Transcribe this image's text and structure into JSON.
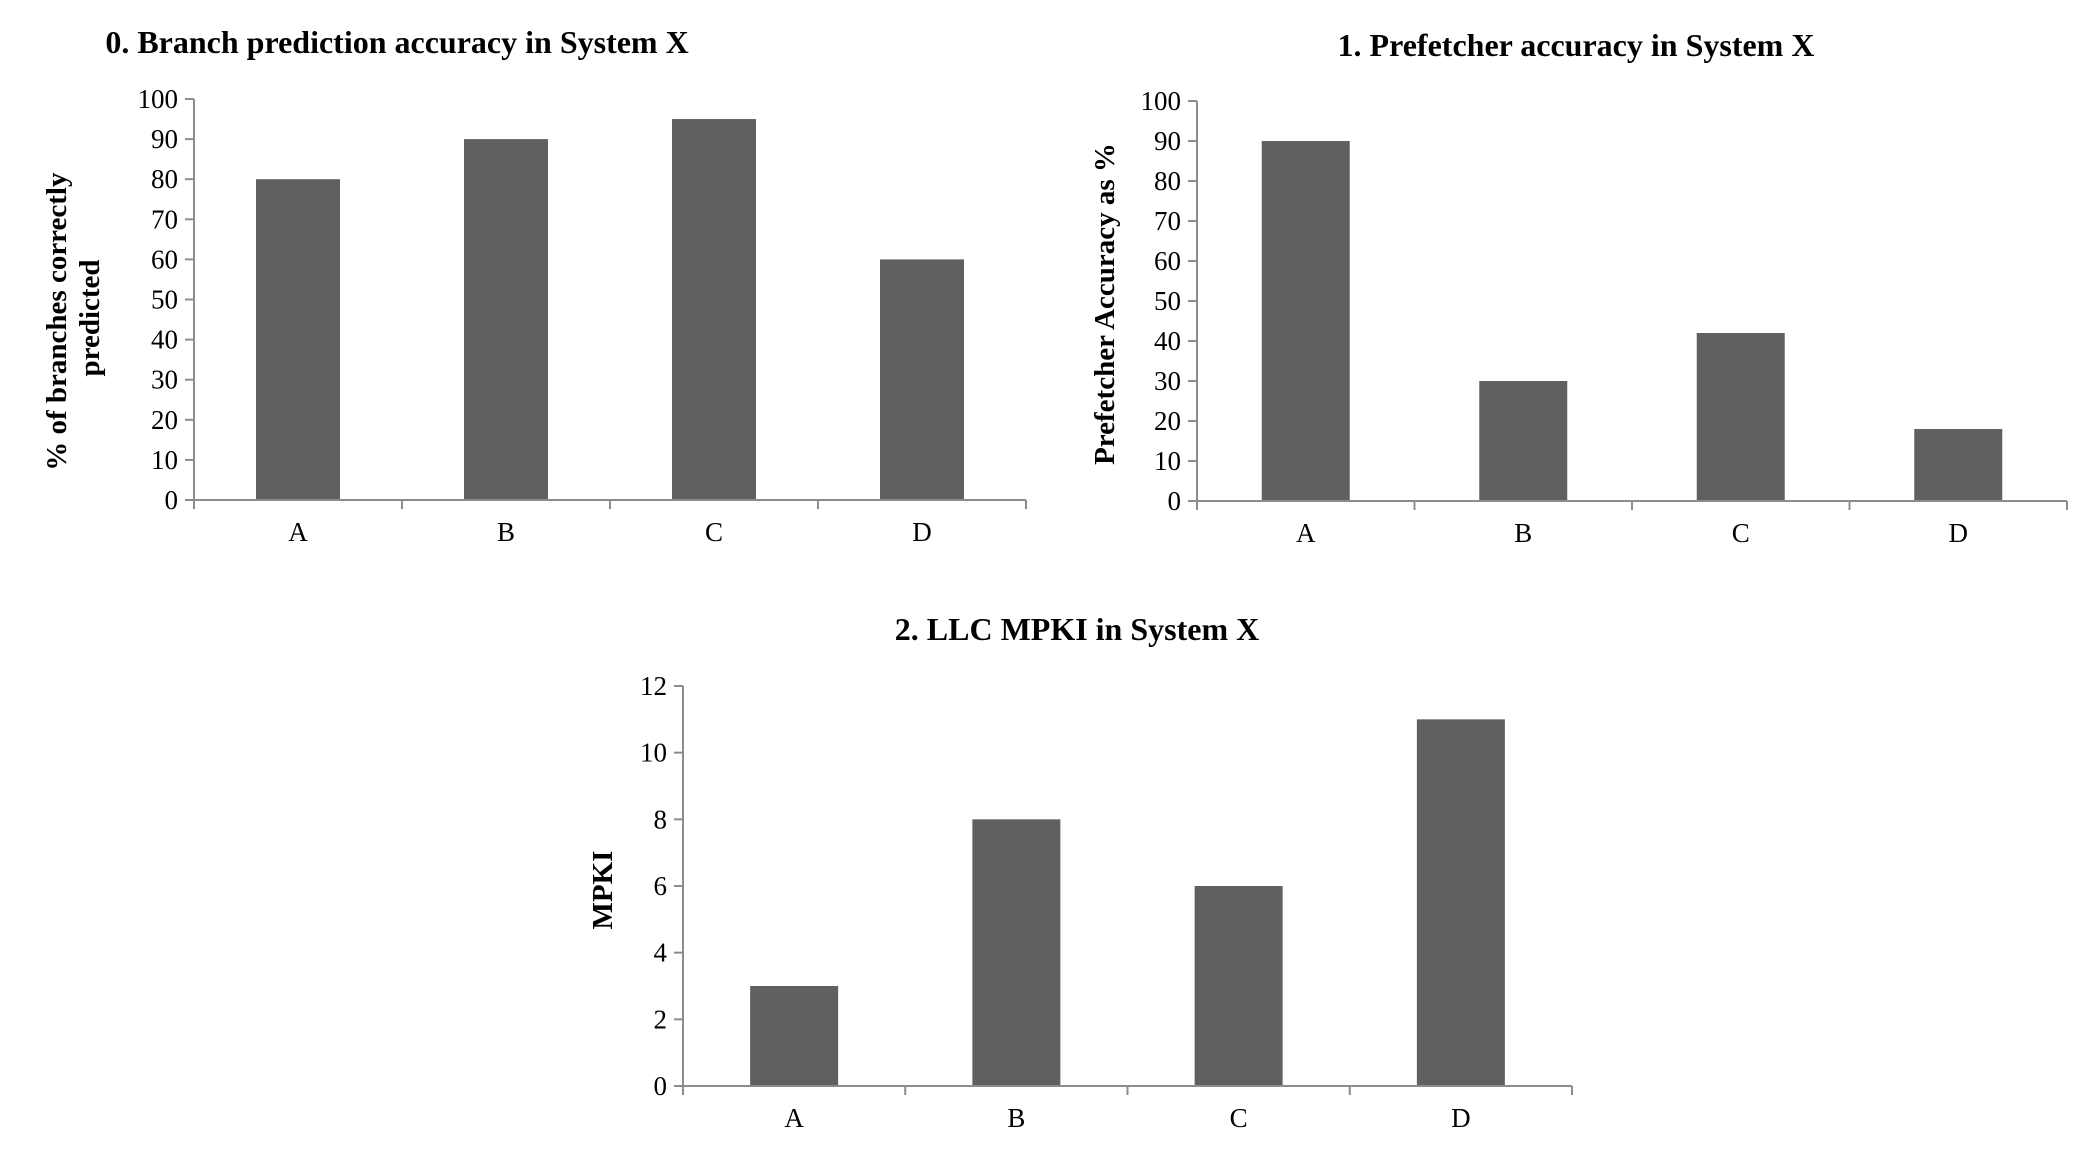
{
  "chart_data": [
    {
      "type": "bar",
      "title": "0. Branch prediction accuracy in System X",
      "xlabel": "",
      "ylabel": [
        "% of branches correctly",
        "predicted"
      ],
      "categories": [
        "A",
        "B",
        "C",
        "D"
      ],
      "values": [
        80,
        90,
        95,
        60
      ],
      "ylim": [
        0,
        100
      ],
      "yticks": [
        0,
        10,
        20,
        30,
        40,
        50,
        60,
        70,
        80,
        90,
        100
      ],
      "grid": false,
      "bar_color": "#606060"
    },
    {
      "type": "bar",
      "title": "1. Prefetcher accuracy in System X",
      "xlabel": "",
      "ylabel": [
        "Prefetcher Accuracy as %"
      ],
      "categories": [
        "A",
        "B",
        "C",
        "D"
      ],
      "values": [
        90,
        30,
        42,
        18
      ],
      "ylim": [
        0,
        100
      ],
      "yticks": [
        0,
        10,
        20,
        30,
        40,
        50,
        60,
        70,
        80,
        90,
        100
      ],
      "grid": false,
      "bar_color": "#606060"
    },
    {
      "type": "bar",
      "title": "2. LLC MPKI in System X",
      "xlabel": "",
      "ylabel": [
        "MPKI"
      ],
      "categories": [
        "A",
        "B",
        "C",
        "D"
      ],
      "values": [
        3,
        8,
        6,
        11
      ],
      "ylim": [
        0,
        12
      ],
      "yticks": [
        0,
        2,
        4,
        6,
        8,
        10,
        12
      ],
      "grid": false,
      "bar_color": "#606060"
    }
  ]
}
